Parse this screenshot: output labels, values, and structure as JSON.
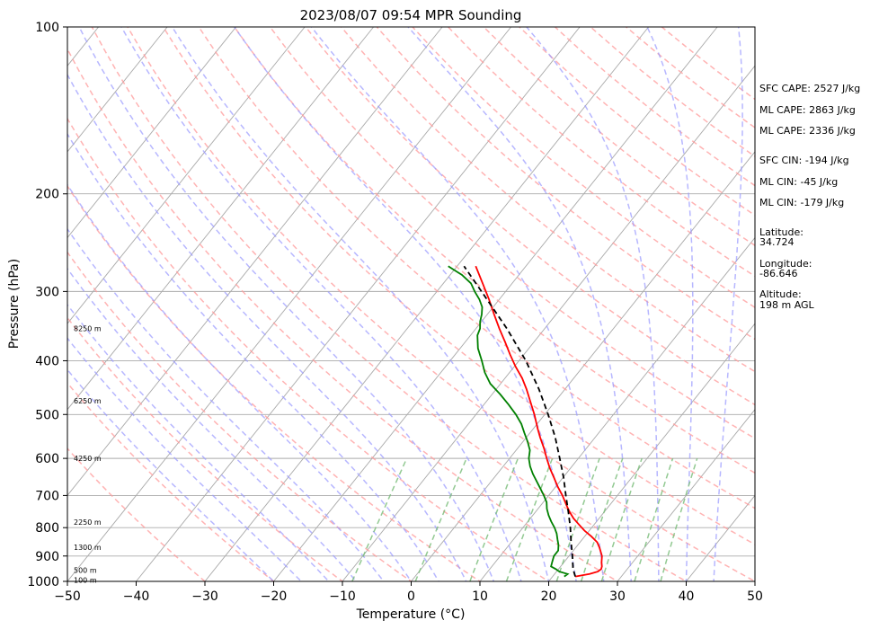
{
  "chart_data": {
    "type": "line",
    "title": "2023/08/07 09:54 MPR Sounding",
    "xlabel": "Temperature (°C)",
    "ylabel": "Pressure (hPa)",
    "xlim": [
      -50,
      50
    ],
    "ylim": [
      1000,
      100
    ],
    "y_scale": "log",
    "grid": true,
    "x_ticks": [
      -50,
      -40,
      -30,
      -20,
      -10,
      0,
      10,
      20,
      30,
      40,
      50
    ],
    "y_ticks": [
      100,
      200,
      300,
      400,
      500,
      600,
      700,
      800,
      900,
      1000
    ],
    "series": [
      {
        "key": "temperature",
        "color": "#ff0000",
        "points": [
          [
            980,
            23.3
          ],
          [
            970,
            25.1
          ],
          [
            960,
            26.0
          ],
          [
            950,
            26.2
          ],
          [
            940,
            26.0
          ],
          [
            925,
            25.5
          ],
          [
            900,
            24.8
          ],
          [
            870,
            23.5
          ],
          [
            850,
            22.5
          ],
          [
            830,
            21.0
          ],
          [
            810,
            19.3
          ],
          [
            790,
            17.8
          ],
          [
            770,
            16.3
          ],
          [
            750,
            15.0
          ],
          [
            730,
            13.8
          ],
          [
            700,
            12.0
          ],
          [
            675,
            10.3
          ],
          [
            650,
            8.7
          ],
          [
            625,
            7.0
          ],
          [
            600,
            5.4
          ],
          [
            575,
            3.8
          ],
          [
            550,
            2.0
          ],
          [
            530,
            0.6
          ],
          [
            500,
            -1.5
          ],
          [
            475,
            -3.5
          ],
          [
            450,
            -5.6
          ],
          [
            430,
            -7.5
          ],
          [
            410,
            -9.8
          ],
          [
            390,
            -12.0
          ],
          [
            370,
            -14.2
          ],
          [
            350,
            -16.6
          ],
          [
            330,
            -19.0
          ],
          [
            310,
            -21.5
          ],
          [
            290,
            -24.3
          ],
          [
            270,
            -27.3
          ]
        ]
      },
      {
        "key": "dewpoint",
        "color": "#008000",
        "points": [
          [
            980,
            21.7
          ],
          [
            970,
            21.9
          ],
          [
            960,
            20.4
          ],
          [
            950,
            19.6
          ],
          [
            940,
            18.6
          ],
          [
            920,
            18.2
          ],
          [
            900,
            17.8
          ],
          [
            880,
            17.8
          ],
          [
            860,
            17.2
          ],
          [
            840,
            16.4
          ],
          [
            820,
            15.6
          ],
          [
            800,
            14.6
          ],
          [
            780,
            13.4
          ],
          [
            760,
            12.3
          ],
          [
            740,
            11.3
          ],
          [
            720,
            10.5
          ],
          [
            700,
            9.3
          ],
          [
            670,
            7.3
          ],
          [
            640,
            5.2
          ],
          [
            620,
            3.9
          ],
          [
            600,
            2.8
          ],
          [
            580,
            2.0
          ],
          [
            560,
            0.7
          ],
          [
            540,
            -0.8
          ],
          [
            520,
            -2.3
          ],
          [
            500,
            -4.2
          ],
          [
            480,
            -6.4
          ],
          [
            460,
            -8.8
          ],
          [
            440,
            -11.5
          ],
          [
            420,
            -13.6
          ],
          [
            400,
            -15.4
          ],
          [
            380,
            -17.4
          ],
          [
            360,
            -19.0
          ],
          [
            350,
            -19.4
          ],
          [
            340,
            -20.2
          ],
          [
            330,
            -20.8
          ],
          [
            320,
            -21.6
          ],
          [
            310,
            -22.9
          ],
          [
            300,
            -24.5
          ],
          [
            290,
            -26.0
          ],
          [
            280,
            -28.3
          ],
          [
            270,
            -31.3
          ]
        ]
      },
      {
        "key": "parcel",
        "color": "#000000",
        "dashed": true,
        "points": [
          [
            980,
            23.3
          ],
          [
            950,
            22.1
          ],
          [
            900,
            20.5
          ],
          [
            850,
            18.7
          ],
          [
            800,
            16.9
          ],
          [
            750,
            14.8
          ],
          [
            700,
            12.5
          ],
          [
            650,
            10.1
          ],
          [
            600,
            7.3
          ],
          [
            550,
            4.2
          ],
          [
            500,
            0.5
          ],
          [
            450,
            -3.8
          ],
          [
            400,
            -9.0
          ],
          [
            350,
            -15.5
          ],
          [
            300,
            -23.5
          ],
          [
            270,
            -29.0
          ]
        ]
      }
    ],
    "height_labels": [
      {
        "p": 995,
        "text": "100 m"
      },
      {
        "p": 955,
        "text": "500 m"
      },
      {
        "p": 868,
        "text": "1300 m"
      },
      {
        "p": 781,
        "text": "2250 m"
      },
      {
        "p": 600,
        "text": "4250 m"
      },
      {
        "p": 472,
        "text": "6250 m"
      },
      {
        "p": 350,
        "text": "8250 m"
      }
    ],
    "annotations": [
      "SFC CAPE: 2527 J/kg",
      "ML CAPE: 2863 J/kg",
      "ML CAPE: 2336 J/kg",
      "SFC CIN: -194 J/kg",
      "ML CIN: -45 J/kg",
      "ML CIN: -179 J/kg",
      "Latitude:",
      "34.724",
      "Longitude:",
      "-86.646",
      "Altitude:",
      "198 m AGL"
    ],
    "background_colors": {
      "isotherm": "#aaaaaa",
      "dry_adiabat": "#ff9999",
      "moist_adiabat": "#9999ff",
      "mixing_ratio": "#77bb77"
    }
  }
}
